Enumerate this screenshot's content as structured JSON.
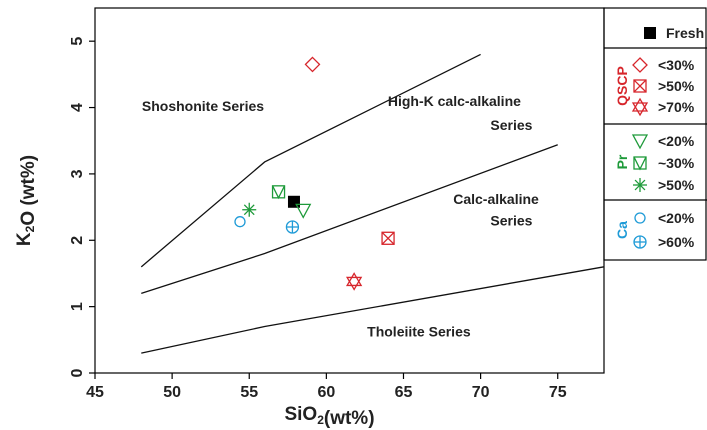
{
  "chart_data": {
    "type": "scatter",
    "xlabel": "SiO2(wt%)",
    "ylabel": "K2O (wt%)",
    "xlim": [
      45,
      78
    ],
    "ylim": [
      0,
      5.5
    ],
    "x_ticks": [
      45,
      50,
      55,
      60,
      65,
      70,
      75
    ],
    "y_ticks": [
      0,
      1,
      2,
      3,
      4,
      5
    ],
    "grid": false,
    "legend_position": "right",
    "boundaries": [
      {
        "name": "shoshonite-boundary",
        "points": [
          [
            48,
            1.6
          ],
          [
            56,
            3.18
          ],
          [
            70,
            4.8
          ]
        ]
      },
      {
        "name": "high-k-boundary",
        "points": [
          [
            48,
            1.2
          ],
          [
            56,
            1.8
          ],
          [
            75,
            3.44
          ]
        ]
      },
      {
        "name": "calc-alkaline-boundary",
        "points": [
          [
            48,
            0.3
          ],
          [
            56,
            0.7
          ],
          [
            78,
            1.6
          ]
        ]
      }
    ],
    "field_labels": [
      {
        "text": "Shoshonite Series",
        "x": 52.0,
        "y": 3.95
      },
      {
        "text": "High-K calc-alkaline",
        "x": 68.3,
        "y": 4.02
      },
      {
        "text": "Series",
        "x": 72.0,
        "y": 3.66
      },
      {
        "text": "Calc-alkaline",
        "x": 71.0,
        "y": 2.55
      },
      {
        "text": "Series",
        "x": 72.0,
        "y": 2.22
      },
      {
        "text": "Tholeiite Series",
        "x": 66.0,
        "y": 0.55
      }
    ],
    "legend_groups": [
      {
        "label": "",
        "label_color": "#000000",
        "entries": [
          {
            "symbol": "filled-square",
            "color": "#000000",
            "label": "Fresh"
          }
        ]
      },
      {
        "label": "QSCP",
        "label_color": "#d7262c",
        "entries": [
          {
            "symbol": "diamond",
            "color": "#d7262c",
            "label": "<30%"
          },
          {
            "symbol": "boxed-x",
            "color": "#d7262c",
            "label": ">50%"
          },
          {
            "symbol": "hexagram",
            "color": "#d7262c",
            "label": ">70%"
          }
        ]
      },
      {
        "label": "Pr",
        "label_color": "#1e9a3a",
        "entries": [
          {
            "symbol": "triangle-down",
            "color": "#1e9a3a",
            "label": "<20%"
          },
          {
            "symbol": "boxed-v",
            "color": "#1e9a3a",
            "label": "~30%"
          },
          {
            "symbol": "asterisk",
            "color": "#1e9a3a",
            "label": ">50%"
          }
        ]
      },
      {
        "label": "Ca",
        "label_color": "#1f9bd7",
        "entries": [
          {
            "symbol": "circle",
            "color": "#1f9bd7",
            "label": "<20%"
          },
          {
            "symbol": "circle-plus",
            "color": "#1f9bd7",
            "label": ">60%"
          }
        ]
      }
    ],
    "series": [
      {
        "name": "Fresh",
        "symbol": "filled-square",
        "color": "#000000",
        "points": [
          [
            57.9,
            2.58
          ]
        ]
      },
      {
        "name": "<30%",
        "symbol": "diamond",
        "color": "#d7262c",
        "points": [
          [
            59.1,
            4.65
          ]
        ]
      },
      {
        "name": ">50%",
        "symbol": "boxed-x",
        "color": "#d7262c",
        "points": [
          [
            64.0,
            2.03
          ]
        ]
      },
      {
        "name": ">70%",
        "symbol": "hexagram",
        "color": "#d7262c",
        "points": [
          [
            61.8,
            1.38
          ]
        ]
      },
      {
        "name": "<20%",
        "symbol": "triangle-down",
        "color": "#1e9a3a",
        "points": [
          [
            58.5,
            2.45
          ]
        ]
      },
      {
        "name": "~30%",
        "symbol": "boxed-v",
        "color": "#1e9a3a",
        "points": [
          [
            56.9,
            2.73
          ]
        ]
      },
      {
        "name": ">50%",
        "symbol": "asterisk",
        "color": "#1e9a3a",
        "points": [
          [
            55.0,
            2.46
          ]
        ]
      },
      {
        "name": "<20%",
        "symbol": "circle",
        "color": "#1f9bd7",
        "points": [
          [
            54.4,
            2.28
          ]
        ]
      },
      {
        "name": ">60%",
        "symbol": "circle-plus",
        "color": "#1f9bd7",
        "points": [
          [
            57.8,
            2.2
          ]
        ]
      }
    ]
  }
}
